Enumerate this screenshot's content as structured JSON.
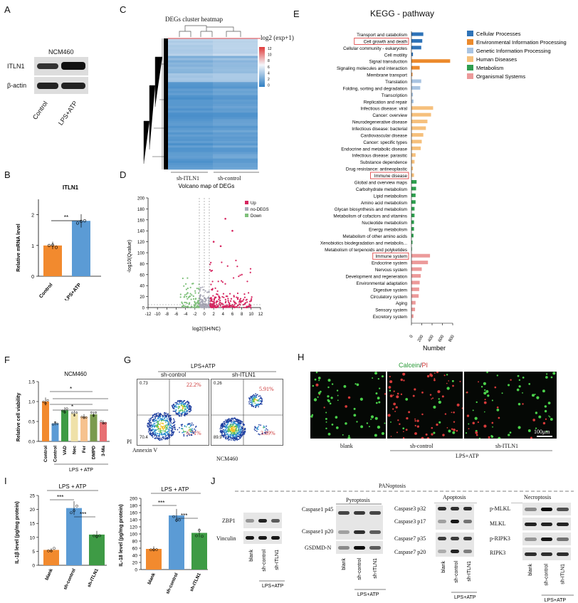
{
  "panels": {
    "A": "A",
    "B": "B",
    "C": "C",
    "D": "D",
    "E": "E",
    "F": "F",
    "G": "G",
    "H": "H",
    "I": "I",
    "J": "J"
  },
  "panelA": {
    "cell_line": "NCM460",
    "rows": [
      "ITLN1",
      "β-actin"
    ],
    "lanes": [
      "Control",
      "LPS+ATP"
    ]
  },
  "panelB": {
    "chart_data": {
      "type": "bar",
      "title": "ITLN1",
      "ylabel": "Relative mRNA level",
      "categories": [
        "Control",
        "LPS+ATP"
      ],
      "values": [
        1.0,
        1.8
      ],
      "ylim": [
        0,
        2.5
      ],
      "significance": "**",
      "colors": [
        "#f28a2e",
        "#5b9bd5"
      ]
    },
    "yticks": [
      "0",
      "1",
      "2"
    ]
  },
  "panelC": {
    "title": "DEGs cluster heatmap",
    "legend_title": "log2 (exp+1)",
    "scale": [
      "12",
      "10",
      "8",
      "6",
      "4",
      "2",
      "0"
    ],
    "columns": [
      "sh-ITLN1",
      "sh-control"
    ]
  },
  "panelD": {
    "chart_data": {
      "type": "scatter",
      "title": "Volcano map of DEGs",
      "xlabel": "log2(SH/NC)",
      "ylabel": "-log10(Qvalue)",
      "xlim": [
        -12,
        12
      ],
      "ylim": [
        0,
        200
      ],
      "series": [
        {
          "name": "Up",
          "color": "#d6245f"
        },
        {
          "name": "no-DEGS",
          "color": "#a9a9b8"
        },
        {
          "name": "Down",
          "color": "#7ec07a"
        }
      ]
    },
    "xticks": [
      "-12",
      "-10",
      "-8",
      "-6",
      "-4",
      "-2",
      "0",
      "2",
      "4",
      "6",
      "8",
      "10",
      "12"
    ],
    "yticks": [
      "0",
      "20",
      "40",
      "60",
      "80",
      "100",
      "120",
      "140",
      "160",
      "180",
      "200"
    ]
  },
  "panelE": {
    "chart_data": {
      "type": "bar",
      "title": "KEGG - pathway",
      "xlabel": "Number",
      "xlim": [
        0,
        800
      ],
      "categories": [
        "Transport and catabolism",
        "Cell growth and death",
        "Cellular community - eukaryotes",
        "Cell motility",
        "Signal transduction",
        "Signaling molecules and interaction",
        "Membrane transport",
        "Translation",
        "Folding, sorting and degradation",
        "Transcription",
        "Replication and repair",
        "Infectious disease: viral",
        "Cancer: overview",
        "Neurodegenerative disease",
        "Infectious disease: bacterial",
        "Cardiovascular disease",
        "Cancer: specific types",
        "Endocrine and metabolic disease",
        "Infectious disease: parasitic",
        "Substance dependence",
        "Drug resistance: antineoplastic",
        "Immune disease",
        "Global and overview maps",
        "Carbohydrate metabolism",
        "Lipid metabolism",
        "Amino acid metabolism",
        "Glycan biosynthesis and metabolism",
        "Metabolism of cofactors and vitamins",
        "Nucleotide metabolism",
        "Energy metabolism",
        "Metabolism of other amino acids",
        "Xenobiotics biodegradation and metabolis...",
        "Metabolism of terpenoids and polyketides",
        "Immune system",
        "Endocrine system",
        "Nervous system",
        "Development and regeneration",
        "Environmental adaptation",
        "Digestive system",
        "Circulatory system",
        "Aging",
        "Sensory system",
        "Excretory system"
      ],
      "values": [
        230,
        210,
        190,
        30,
        750,
        160,
        20,
        190,
        170,
        30,
        40,
        420,
        380,
        310,
        280,
        230,
        200,
        180,
        80,
        60,
        30,
        50,
        100,
        90,
        80,
        80,
        60,
        60,
        50,
        50,
        40,
        20,
        10,
        360,
        320,
        200,
        180,
        160,
        150,
        140,
        80,
        70,
        40
      ],
      "groups": [
        0,
        0,
        0,
        0,
        1,
        1,
        1,
        2,
        2,
        2,
        2,
        3,
        3,
        3,
        3,
        3,
        3,
        3,
        3,
        3,
        3,
        3,
        4,
        4,
        4,
        4,
        4,
        4,
        4,
        4,
        4,
        4,
        4,
        5,
        5,
        5,
        5,
        5,
        5,
        5,
        5,
        5,
        5
      ],
      "legend": [
        {
          "name": "Cellular Processes",
          "color": "#2e73b8"
        },
        {
          "name": "Environmental Information Processing",
          "color": "#ec8a2c"
        },
        {
          "name": "Genetic Information Processing",
          "color": "#a9c4e2"
        },
        {
          "name": "Human Diseases",
          "color": "#f6c07c"
        },
        {
          "name": "Metabolism",
          "color": "#2e9e4e"
        },
        {
          "name": "Organismal Systems",
          "color": "#ec9a9a"
        }
      ],
      "highlighted": [
        "Cell growth and death",
        "Immune disease",
        "Immune system"
      ]
    },
    "xticks": [
      "0",
      "200",
      "400",
      "600",
      "800"
    ]
  },
  "panelF": {
    "chart_data": {
      "type": "bar",
      "title": "NCM460",
      "ylabel": "Relative cell viability",
      "categories": [
        "Control",
        "Control",
        "VAD",
        "Nec",
        "Fer",
        "DMPD",
        "3-Ma"
      ],
      "values": [
        1.0,
        0.45,
        0.78,
        0.7,
        0.62,
        0.68,
        0.48
      ],
      "ylim": [
        0,
        1.5
      ],
      "colors": [
        "#f28a2e",
        "#5b9bd5",
        "#3e9b45",
        "#efe1a9",
        "#f6c28e",
        "#7a9a4e",
        "#e76f72"
      ]
    },
    "yticks": [
      "0.0",
      "0.5",
      "1.0",
      "1.5"
    ],
    "group_label": "LPS + ATP",
    "sig": [
      "*",
      "*"
    ]
  },
  "panelG": {
    "group_label": "LPS+ATP",
    "conditions": [
      "sh-control",
      "sh-ITLN1"
    ],
    "quadrants_ctrl": [
      "0.73",
      "22.2%",
      "70.4",
      "6.71%"
    ],
    "quadrants_sh": [
      "0.26",
      "5.91%",
      "89.9",
      "3.89%"
    ],
    "xlabel": "Annexin V",
    "ylabel": "PI",
    "cell_line": "NCM460"
  },
  "panelH": {
    "title_a": "Calcein",
    "title_sep": "/",
    "title_b": "PI",
    "scale": "100μm",
    "images": [
      "blank",
      "sh-control",
      "sh-ITLN1"
    ],
    "group_label": "LPS+ATP"
  },
  "panelI": {
    "il1b": {
      "chart_data": {
        "type": "bar",
        "title": "LPS + ATP",
        "ylabel": "IL-1β level (pg/mg protein)",
        "categories": [
          "blank",
          "sh-control",
          "sh-ITLN1"
        ],
        "values": [
          5.5,
          20.5,
          11.0
        ],
        "ylim": [
          0,
          25
        ],
        "colors": [
          "#f28a2e",
          "#5b9bd5",
          "#3e9b45"
        ]
      },
      "yticks": [
        "0",
        "5",
        "10",
        "15",
        "20",
        "25"
      ],
      "sig": [
        "***",
        "***"
      ]
    },
    "il18": {
      "chart_data": {
        "type": "bar",
        "title": "LPS + ATP",
        "ylabel": "IL-18 level (pg/mg protein)",
        "categories": [
          "blank",
          "sh-control",
          "sh-ITLN1"
        ],
        "values": [
          58,
          152,
          103
        ],
        "ylim": [
          0,
          200
        ],
        "colors": [
          "#f28a2e",
          "#5b9bd5",
          "#3e9b45"
        ]
      },
      "yticks": [
        "0",
        "20",
        "40",
        "60",
        "80",
        "100",
        "120",
        "140",
        "160",
        "180",
        "200"
      ],
      "sig": [
        "***",
        "***"
      ]
    }
  },
  "panelJ": {
    "title": "PANoptosis",
    "sections": [
      "Pyroptosis",
      "Apoptosis",
      "Necroptosis"
    ],
    "blot1": [
      "ZBP1",
      "Vinculin"
    ],
    "blot2": [
      "Caspase1 p45",
      "Caspase1 p20",
      "GSDMD-N"
    ],
    "blot3": [
      "Caspase3 p32",
      "Caspase3 p17",
      "Caspase7 p35",
      "Caspase7 p20"
    ],
    "blot4": [
      "p-MLKL",
      "MLKL",
      "p-RIPK3",
      "RIPK3"
    ],
    "lanes": [
      "blank",
      "sh-control",
      "sh-ITLN1"
    ],
    "group_label": "LPS+ATP"
  }
}
